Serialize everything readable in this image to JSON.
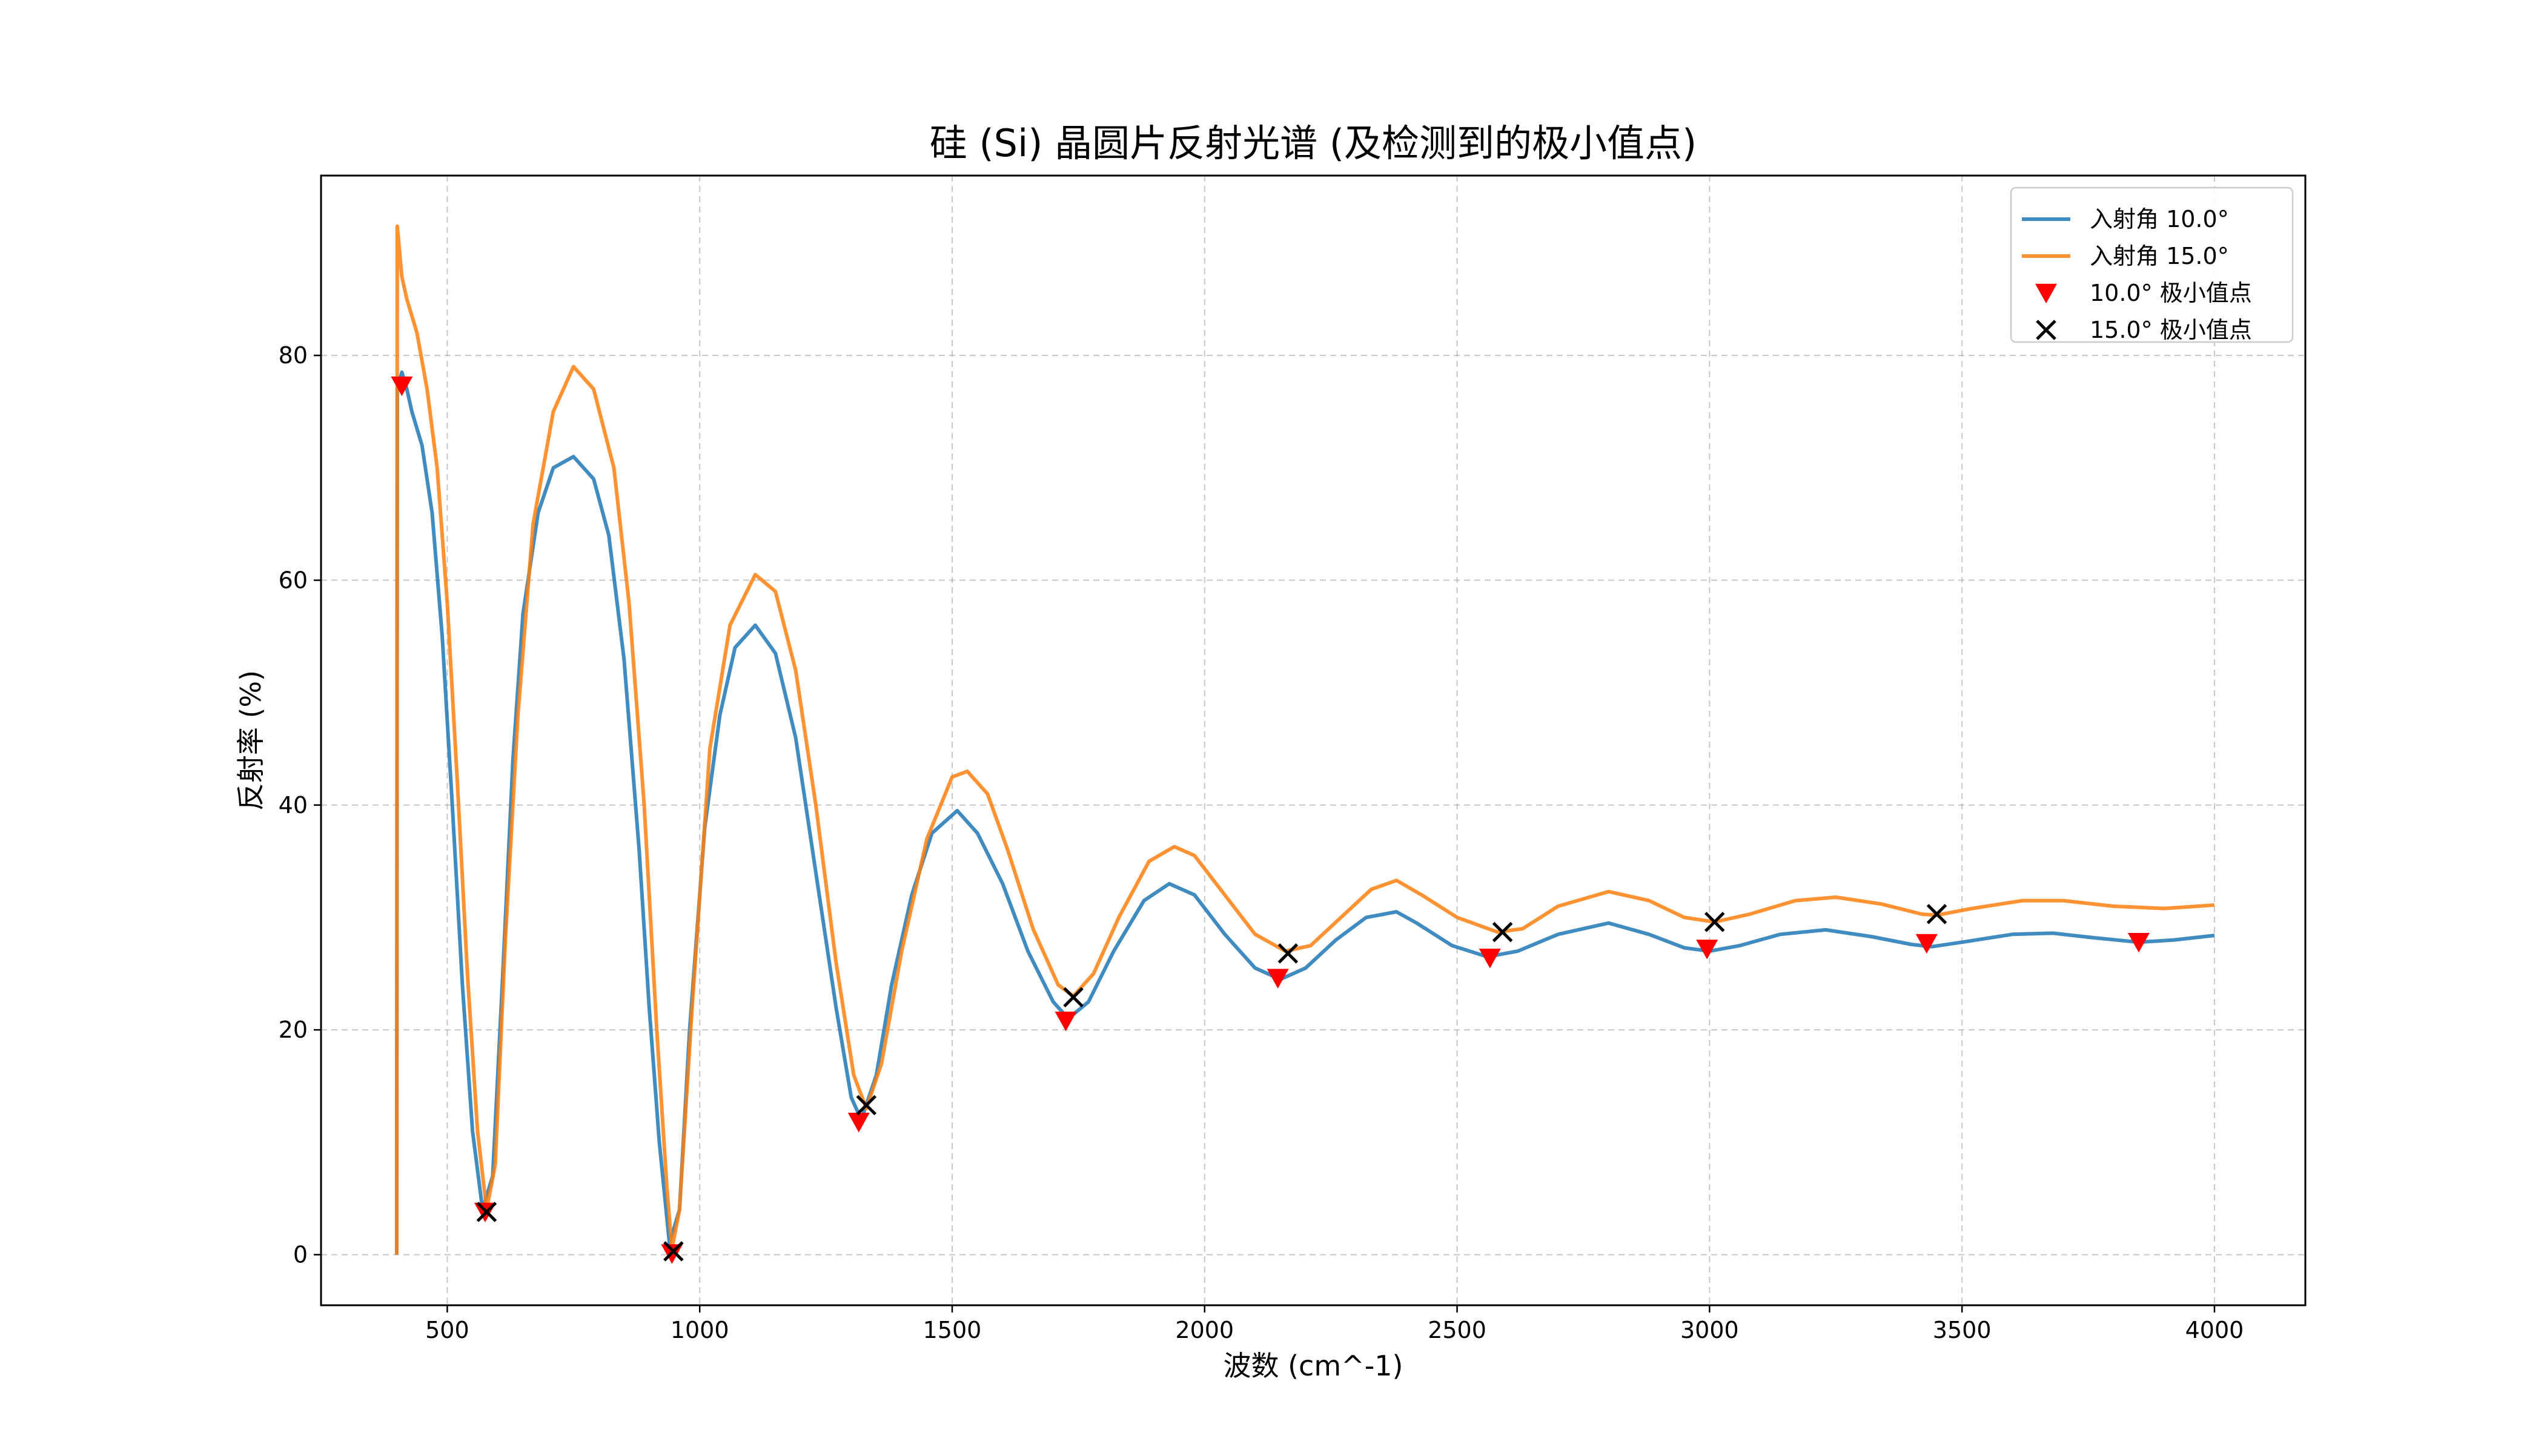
{
  "chart_data": {
    "type": "line",
    "title": "硅 (Si) 晶圆片反射光谱 (及检测到的极小值点)",
    "xlabel": "波数 (cm^-1)",
    "ylabel": "反射率 (%)",
    "xlim": [
      250,
      4180
    ],
    "ylim": [
      -4.5,
      96
    ],
    "x_ticks": [
      500,
      1000,
      1500,
      2000,
      2500,
      3000,
      3500,
      4000
    ],
    "y_ticks": [
      0,
      20,
      40,
      60,
      80
    ],
    "grid": true,
    "legend_position": "top-right",
    "series": [
      {
        "name": "入射角 10.0°",
        "color": "#1f77b4",
        "points": [
          [
            400,
            0
          ],
          [
            401,
            77
          ],
          [
            410,
            78.5
          ],
          [
            420,
            77
          ],
          [
            430,
            75
          ],
          [
            450,
            72
          ],
          [
            470,
            66
          ],
          [
            490,
            55
          ],
          [
            510,
            40
          ],
          [
            530,
            24
          ],
          [
            550,
            11
          ],
          [
            570,
            4
          ],
          [
            590,
            7
          ],
          [
            610,
            25
          ],
          [
            630,
            44
          ],
          [
            650,
            57
          ],
          [
            680,
            66
          ],
          [
            710,
            70
          ],
          [
            750,
            71
          ],
          [
            790,
            69
          ],
          [
            820,
            64
          ],
          [
            850,
            53
          ],
          [
            880,
            36
          ],
          [
            900,
            22
          ],
          [
            920,
            10
          ],
          [
            940,
            1
          ],
          [
            960,
            4
          ],
          [
            980,
            20
          ],
          [
            1010,
            38
          ],
          [
            1040,
            48
          ],
          [
            1070,
            54
          ],
          [
            1110,
            56
          ],
          [
            1150,
            53.5
          ],
          [
            1190,
            46
          ],
          [
            1230,
            34
          ],
          [
            1270,
            22
          ],
          [
            1300,
            14
          ],
          [
            1320,
            12
          ],
          [
            1350,
            16
          ],
          [
            1380,
            24
          ],
          [
            1420,
            32
          ],
          [
            1460,
            37.5
          ],
          [
            1510,
            39.5
          ],
          [
            1550,
            37.5
          ],
          [
            1600,
            33
          ],
          [
            1650,
            27
          ],
          [
            1700,
            22.5
          ],
          [
            1730,
            21
          ],
          [
            1770,
            22.5
          ],
          [
            1820,
            27
          ],
          [
            1880,
            31.5
          ],
          [
            1930,
            33
          ],
          [
            1980,
            32
          ],
          [
            2040,
            28.5
          ],
          [
            2100,
            25.5
          ],
          [
            2150,
            24.5
          ],
          [
            2200,
            25.5
          ],
          [
            2260,
            28
          ],
          [
            2320,
            30
          ],
          [
            2380,
            30.5
          ],
          [
            2420,
            29.5
          ],
          [
            2490,
            27.5
          ],
          [
            2560,
            26.5
          ],
          [
            2620,
            27
          ],
          [
            2700,
            28.5
          ],
          [
            2800,
            29.5
          ],
          [
            2880,
            28.5
          ],
          [
            2950,
            27.3
          ],
          [
            3000,
            27
          ],
          [
            3060,
            27.5
          ],
          [
            3140,
            28.5
          ],
          [
            3230,
            28.9
          ],
          [
            3320,
            28.3
          ],
          [
            3400,
            27.6
          ],
          [
            3440,
            27.4
          ],
          [
            3500,
            27.8
          ],
          [
            3600,
            28.5
          ],
          [
            3680,
            28.6
          ],
          [
            3760,
            28.2
          ],
          [
            3850,
            27.8
          ],
          [
            3920,
            28
          ],
          [
            4000,
            28.4
          ]
        ]
      },
      {
        "name": "入射角 15.0°",
        "color": "#ff7f0e",
        "points": [
          [
            400,
            0
          ],
          [
            401,
            91.5
          ],
          [
            410,
            87
          ],
          [
            420,
            85
          ],
          [
            440,
            82
          ],
          [
            460,
            77
          ],
          [
            480,
            70
          ],
          [
            500,
            58
          ],
          [
            520,
            42
          ],
          [
            540,
            25
          ],
          [
            560,
            11
          ],
          [
            578,
            4
          ],
          [
            595,
            8
          ],
          [
            615,
            28
          ],
          [
            640,
            48
          ],
          [
            670,
            65
          ],
          [
            710,
            75
          ],
          [
            750,
            79
          ],
          [
            790,
            77
          ],
          [
            830,
            70
          ],
          [
            860,
            58
          ],
          [
            890,
            40
          ],
          [
            915,
            20
          ],
          [
            935,
            6
          ],
          [
            945,
            0.5
          ],
          [
            960,
            4
          ],
          [
            985,
            22
          ],
          [
            1020,
            45
          ],
          [
            1060,
            56
          ],
          [
            1110,
            60.5
          ],
          [
            1150,
            59
          ],
          [
            1190,
            52
          ],
          [
            1230,
            40
          ],
          [
            1270,
            26
          ],
          [
            1305,
            16
          ],
          [
            1330,
            13
          ],
          [
            1360,
            17
          ],
          [
            1400,
            27
          ],
          [
            1450,
            37
          ],
          [
            1500,
            42.5
          ],
          [
            1530,
            43
          ],
          [
            1570,
            41
          ],
          [
            1610,
            36
          ],
          [
            1660,
            29
          ],
          [
            1710,
            24
          ],
          [
            1740,
            23
          ],
          [
            1780,
            25
          ],
          [
            1830,
            30
          ],
          [
            1890,
            35
          ],
          [
            1940,
            36.3
          ],
          [
            1980,
            35.5
          ],
          [
            2040,
            32
          ],
          [
            2100,
            28.5
          ],
          [
            2160,
            27
          ],
          [
            2210,
            27.5
          ],
          [
            2270,
            30
          ],
          [
            2330,
            32.5
          ],
          [
            2380,
            33.3
          ],
          [
            2430,
            32
          ],
          [
            2500,
            30
          ],
          [
            2580,
            28.7
          ],
          [
            2630,
            29
          ],
          [
            2700,
            31
          ],
          [
            2800,
            32.3
          ],
          [
            2880,
            31.5
          ],
          [
            2950,
            30
          ],
          [
            3010,
            29.6
          ],
          [
            3080,
            30.3
          ],
          [
            3170,
            31.5
          ],
          [
            3250,
            31.8
          ],
          [
            3340,
            31.2
          ],
          [
            3420,
            30.3
          ],
          [
            3450,
            30.2
          ],
          [
            3520,
            30.8
          ],
          [
            3620,
            31.5
          ],
          [
            3700,
            31.5
          ],
          [
            3800,
            31
          ],
          [
            3900,
            30.8
          ],
          [
            4000,
            31.1
          ]
        ]
      }
    ],
    "minima": [
      {
        "name": "10.0°  极小值点",
        "marker": "triangle-down",
        "color": "#ff0000",
        "points": [
          [
            410,
            77.3
          ],
          [
            575,
            3.8
          ],
          [
            945,
            0.1
          ],
          [
            1315,
            11.8
          ],
          [
            1725,
            20.8
          ],
          [
            2145,
            24.6
          ],
          [
            2565,
            26.4
          ],
          [
            2995,
            27.2
          ],
          [
            3430,
            27.7
          ],
          [
            3850,
            27.8
          ]
        ]
      },
      {
        "name": "15.0°  极小值点",
        "marker": "x",
        "color": "#000000",
        "points": [
          [
            578,
            3.8
          ],
          [
            948,
            0.3
          ],
          [
            1330,
            13.3
          ],
          [
            1740,
            22.9
          ],
          [
            2165,
            26.8
          ],
          [
            2590,
            28.7
          ],
          [
            3010,
            29.6
          ],
          [
            3450,
            30.3
          ]
        ]
      }
    ]
  }
}
